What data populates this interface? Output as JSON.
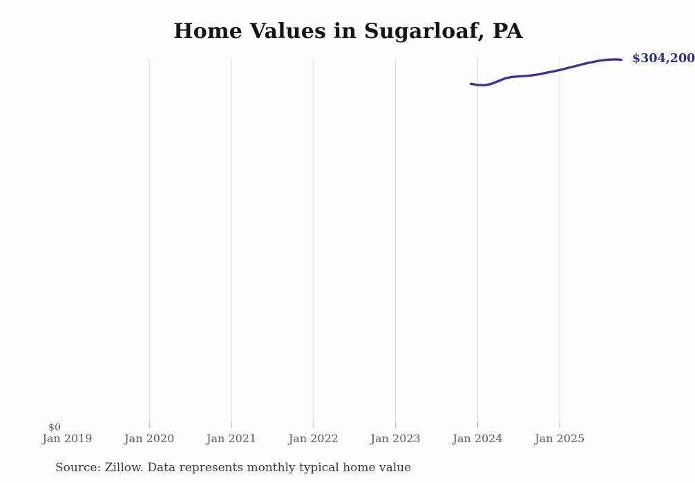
{
  "title": "Home Values in Sugarloaf, PA",
  "end_label": "$304,200",
  "source_note": "Source: Zillow. Data represents monthly typical home value",
  "y_axis": {
    "zero_label": "$0"
  },
  "x_axis": {
    "tick_labels": [
      "Jan 2019",
      "Jan 2020",
      "Jan 2021",
      "Jan 2022",
      "Jan 2023",
      "Jan 2024",
      "Jan 2025"
    ]
  },
  "colors": {
    "background": "#fdfdfd",
    "line": "#3b3492",
    "end_label": "#2f2d8e",
    "gridline": "#dadada",
    "tick": "#ababab",
    "axis_text": "#595959",
    "title_text": "#141414",
    "source_text": "#3a3a3a"
  },
  "chart_data": {
    "type": "line",
    "title": "Home Values in Sugarloaf, PA",
    "xlabel": "",
    "ylabel": "",
    "ylim": [
      0,
      305000
    ],
    "grid": "vertical-only",
    "legend_position": "none",
    "x_tick_labels": [
      "Jan 2019",
      "Jan 2020",
      "Jan 2021",
      "Jan 2022",
      "Jan 2023",
      "Jan 2024",
      "Jan 2025"
    ],
    "gridlines_at": [
      "Jan 2020",
      "Jan 2021",
      "Jan 2022",
      "Jan 2023",
      "Jan 2024",
      "Jan 2025"
    ],
    "end_label": "$304,200",
    "series": [
      {
        "name": "Monthly typical home value",
        "x": [
          "2023-12",
          "2024-01",
          "2024-02",
          "2024-03",
          "2024-04",
          "2024-05",
          "2024-06",
          "2024-07",
          "2024-08",
          "2024-09",
          "2024-10",
          "2024-11",
          "2024-12",
          "2025-01",
          "2025-02",
          "2025-03",
          "2025-04",
          "2025-05",
          "2025-06",
          "2025-07",
          "2025-08",
          "2025-09",
          "2025-10"
        ],
        "values": [
          284300,
          283400,
          283100,
          284300,
          286500,
          288800,
          290000,
          290400,
          290700,
          291400,
          292200,
          293400,
          294500,
          295700,
          297100,
          298500,
          299900,
          301400,
          302500,
          303600,
          304200,
          304500,
          304200
        ]
      }
    ]
  }
}
